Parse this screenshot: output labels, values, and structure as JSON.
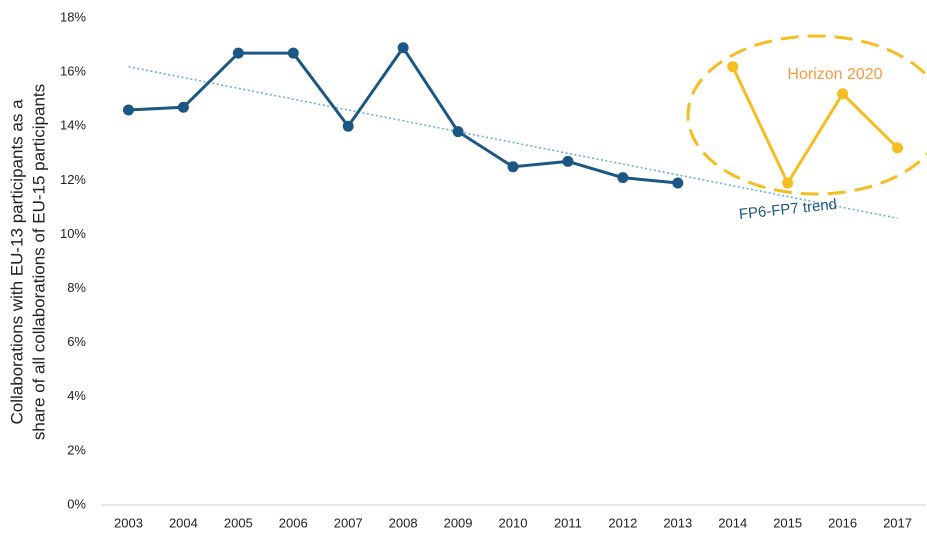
{
  "chart_data": {
    "type": "line",
    "ylabel": [
      "Collaborations with EU-13 participants as a",
      "share of all collaborations of EU-15 participants"
    ],
    "categories": [
      "2003",
      "2004",
      "2005",
      "2006",
      "2007",
      "2008",
      "2009",
      "2010",
      "2011",
      "2012",
      "2013",
      "2014",
      "2015",
      "2016",
      "2017"
    ],
    "series": [
      {
        "color": "#1b5784",
        "values": [
          14.6,
          14.7,
          16.7,
          16.7,
          14.0,
          16.9,
          13.8,
          12.5,
          12.7,
          12.1,
          11.9,
          null,
          null,
          null,
          null
        ]
      },
      {
        "name": "Horizon 2020",
        "color": "#f5bd1f",
        "label_color": "#f79a3e",
        "values": [
          null,
          null,
          null,
          null,
          null,
          null,
          null,
          null,
          null,
          null,
          null,
          16.2,
          11.9,
          15.2,
          13.2
        ]
      }
    ],
    "trend": {
      "name": "FP6-FP7 trend",
      "color": "#6aaee0",
      "label_color": "#1b5784",
      "values": [
        16.2,
        15.8,
        15.4,
        15.0,
        14.6,
        14.2,
        13.8,
        13.4,
        13.0,
        12.6,
        12.2,
        11.8,
        11.4,
        11.0,
        10.6
      ]
    },
    "ylim": [
      0,
      18
    ],
    "yticks": [
      {
        "value": 0,
        "label": "0%"
      },
      {
        "value": 2,
        "label": "2%"
      },
      {
        "value": 4,
        "label": "4%"
      },
      {
        "value": 6,
        "label": "6%"
      },
      {
        "value": 8,
        "label": "8%"
      },
      {
        "value": 10,
        "label": "10%"
      },
      {
        "value": 12,
        "label": "12%"
      },
      {
        "value": 14,
        "label": "14%"
      },
      {
        "value": 16,
        "label": "16%"
      },
      {
        "value": 18,
        "label": "18%"
      }
    ],
    "grid": false
  }
}
